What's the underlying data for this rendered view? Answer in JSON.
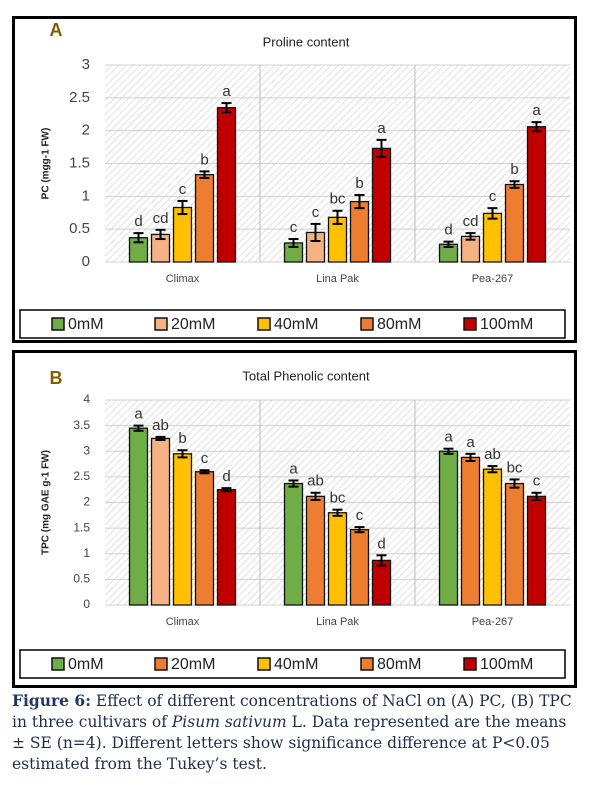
{
  "chart_data": [
    {
      "type": "bar",
      "panel_label": "A",
      "title": "Proline content",
      "y_label": "PC (mgg-1 FW)",
      "categories": [
        "Climax",
        "Lina Pak",
        "Pea-267"
      ],
      "ylim": [
        0,
        3
      ],
      "yticks": [
        0,
        0.5,
        1,
        1.5,
        2,
        2.5,
        3
      ],
      "grid": true,
      "series": [
        {
          "name": "0mM",
          "color": "#70ad47",
          "values": [
            0.37,
            0.29,
            0.27
          ],
          "errors": [
            0.07,
            0.06,
            0.04
          ],
          "letters": [
            "d",
            "c",
            "d"
          ]
        },
        {
          "name": "20mM",
          "color": "#f4b183",
          "values": [
            0.42,
            0.45,
            0.39
          ],
          "errors": [
            0.07,
            0.13,
            0.05
          ],
          "letters": [
            "cd",
            "c",
            "cd"
          ]
        },
        {
          "name": "40mM",
          "color": "#ffc000",
          "values": [
            0.83,
            0.68,
            0.74
          ],
          "errors": [
            0.1,
            0.1,
            0.08
          ],
          "letters": [
            "c",
            "bc",
            "c"
          ]
        },
        {
          "name": "80mM",
          "color": "#ed7d31",
          "values": [
            1.33,
            0.92,
            1.18
          ],
          "errors": [
            0.05,
            0.1,
            0.05
          ],
          "letters": [
            "b",
            "b",
            "b"
          ]
        },
        {
          "name": "100mM",
          "color": "#c00000",
          "values": [
            2.35,
            1.73,
            2.06
          ],
          "errors": [
            0.07,
            0.13,
            0.07
          ],
          "letters": [
            "a",
            "a",
            "a"
          ]
        }
      ]
    },
    {
      "type": "bar",
      "panel_label": "B",
      "title": "Total Phenolic content",
      "y_label": "TPC (mg GAE g-1 FW)",
      "categories": [
        "Climax",
        "Lina Pak",
        "Pea-267"
      ],
      "ylim": [
        0,
        4
      ],
      "yticks": [
        0,
        0.5,
        1,
        1.5,
        2,
        2.5,
        3,
        3.5,
        4
      ],
      "grid": true,
      "series": [
        {
          "name": "0mM",
          "color": "#70ad47",
          "values": [
            3.45,
            2.37,
            3.0
          ],
          "errors": [
            0.05,
            0.06,
            0.05
          ],
          "letters": [
            "a",
            "a",
            "a"
          ]
        },
        {
          "name": "20mM",
          "color": "#ed7d31",
          "colors": [
            "#f4b183",
            "#ed7d31",
            "#ed7d31"
          ],
          "values": [
            3.25,
            2.12,
            2.88
          ],
          "errors": [
            0.03,
            0.07,
            0.07
          ],
          "letters": [
            "ab",
            "ab",
            "a"
          ]
        },
        {
          "name": "40mM",
          "color": "#ffc000",
          "values": [
            2.95,
            1.8,
            2.65
          ],
          "errors": [
            0.07,
            0.06,
            0.06
          ],
          "letters": [
            "b",
            "bc",
            "ab"
          ]
        },
        {
          "name": "80mM",
          "color": "#ed7d31",
          "values": [
            2.6,
            1.47,
            2.37
          ],
          "errors": [
            0.03,
            0.05,
            0.08
          ],
          "letters": [
            "c",
            "c",
            "bc"
          ]
        },
        {
          "name": "100mM",
          "color": "#c00000",
          "values": [
            2.25,
            0.87,
            2.12
          ],
          "errors": [
            0.03,
            0.1,
            0.07
          ],
          "letters": [
            "d",
            "d",
            "c"
          ]
        }
      ]
    }
  ],
  "caption": {
    "label": "Figure 6:",
    "text_before": "Effect of different concentrations of NaCl on (A) PC, (B) TPC in three cultivars of",
    "italic": "Pisum sativum",
    "text_after": "L. Data represented are the means ± SE (n=4). Different letters show significance difference at P<0.05 estimated from the Tukey’s test."
  }
}
